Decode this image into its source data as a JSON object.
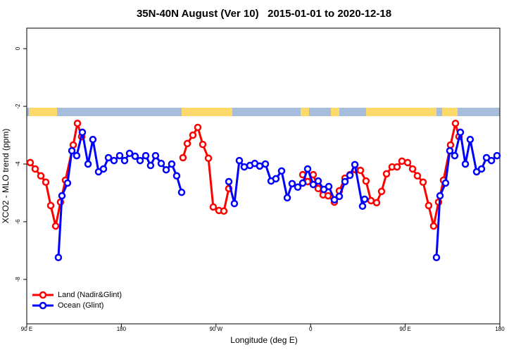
{
  "chart_data": {
    "type": "line",
    "title": "35N-40N August (Ver 10)   2015-01-01 to 2020-12-18",
    "x_label": "Longitude (deg E)",
    "y_label": "XCO2 - MLO trend (ppm)",
    "xlim": [
      90,
      540
    ],
    "ylim": [
      -9.54,
      0.71
    ],
    "xticks": [
      {
        "value": 90,
        "label": "90 E"
      },
      180,
      {
        "value": 270,
        "label": "90 W"
      },
      {
        "value": 360,
        "label": "0"
      },
      {
        "value": 450,
        "label": "90 E"
      },
      {
        "value": 540,
        "label": "180"
      }
    ],
    "yticks": [
      0,
      -2,
      -4,
      -6,
      -8
    ],
    "legend": "bottom-left",
    "series": [
      {
        "name": "Land (Nadir&Glint)",
        "color": "#ff0000",
        "x": [
          93.3,
          98.0,
          103.4,
          108.1,
          112.8,
          117.5,
          122.1,
          126.8,
          134.2,
          138.2,
          142.2,
          150,
          238.6,
          242.7,
          248.0,
          252.7,
          257.4,
          262.8,
          267.4,
          272.8,
          277.5,
          282.2,
          300,
          352.5,
          357.2,
          362.5,
          367.2,
          371.9,
          376.6,
          382.6,
          387.3,
          392.7,
          397.4,
          402.7,
          407.4,
          412.7,
          417.4,
          422.8,
          427.5,
          432.2,
          437.5,
          442.2,
          446.9,
          452.3,
          457.0,
          461.6,
          467.0,
          472.3,
          477.0,
          481.7,
          486.4,
          493.1,
          497.8,
          501.1
        ],
        "values": [
          -3.95,
          -4.17,
          -4.41,
          -4.63,
          -5.44,
          -6.15,
          -5.32,
          -4.56,
          -3.34,
          -2.59,
          -3.05,
          null,
          -3.78,
          -3.29,
          -3.0,
          -2.73,
          -3.32,
          -3.8,
          -5.49,
          -5.61,
          -5.63,
          -4.85,
          null,
          -4.37,
          -4.61,
          -4.37,
          -4.85,
          -5.07,
          -5.1,
          -5.32,
          -4.93,
          -4.49,
          -4.37,
          -4.2,
          -4.22,
          -4.59,
          -5.27,
          -5.34,
          -4.95,
          -4.34,
          -4.1,
          -4.1,
          -3.9,
          -3.95,
          -4.17,
          -4.41,
          -4.63,
          -5.44,
          -6.15,
          -5.32,
          -4.56,
          -3.34,
          -2.59,
          -3.05
        ]
      },
      {
        "name": "Ocean (Glint)",
        "color": "#0000ff",
        "x": [
          120.1,
          123.5,
          128.8,
          132.9,
          137.5,
          142.9,
          148.3,
          152.9,
          158.3,
          163.0,
          167.7,
          173.0,
          178.4,
          183.1,
          187.8,
          193.1,
          197.8,
          203.2,
          207.8,
          212.5,
          217.9,
          222.6,
          227.9,
          232.6,
          237.3,
          280,
          282.2,
          287.5,
          292.2,
          296.9,
          302.3,
          306.9,
          311.6,
          317.0,
          322.4,
          327.0,
          332.4,
          337.8,
          342.4,
          347.8,
          352.5,
          357.2,
          362.5,
          367.2,
          372.6,
          377.3,
          382.6,
          387.3,
          392.7,
          397.4,
          402.1,
          409.4,
          411.4,
          450,
          479.7,
          483.1,
          488.4,
          492.4,
          497.1,
          502.5,
          507.2,
          511.8,
          517.9,
          522.6,
          527.3,
          532.0,
          537.3
        ],
        "values": [
          -7.24,
          -5.1,
          -4.66,
          -3.54,
          -3.71,
          -2.9,
          -4.0,
          -3.15,
          -4.27,
          -4.17,
          -3.78,
          -3.88,
          -3.71,
          -3.88,
          -3.63,
          -3.73,
          -3.88,
          -3.71,
          -4.05,
          -3.71,
          -3.98,
          -4.2,
          -4.0,
          -4.41,
          -4.98,
          null,
          -4.61,
          -5.37,
          -3.88,
          -4.1,
          -4.05,
          -3.98,
          -4.07,
          -4.0,
          -4.59,
          -4.51,
          -4.24,
          -5.17,
          -4.68,
          -4.8,
          -4.66,
          -4.17,
          -4.71,
          -4.59,
          -4.88,
          -4.78,
          -5.24,
          -5.12,
          -4.61,
          -4.39,
          -4.02,
          -5.46,
          -5.22,
          null,
          -7.24,
          -5.1,
          -4.66,
          -3.54,
          -3.71,
          -2.9,
          -4.0,
          -3.15,
          -4.27,
          -4.17,
          -3.78,
          -3.88,
          -3.71
        ]
      }
    ]
  }
}
